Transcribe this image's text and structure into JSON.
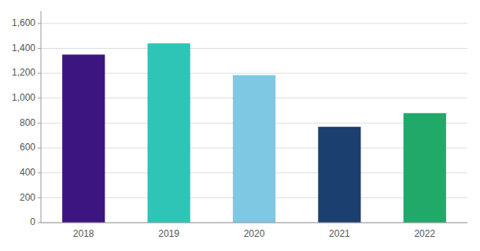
{
  "chart_data": {
    "type": "bar",
    "categories": [
      "2018",
      "2019",
      "2020",
      "2021",
      "2022"
    ],
    "values": [
      1350,
      1440,
      1185,
      770,
      880
    ],
    "colors": [
      "#3D1580",
      "#2EC4B6",
      "#7EC8E3",
      "#1B3F6E",
      "#21A96A"
    ],
    "ylim": [
      0,
      1700
    ],
    "yticks": [
      0,
      200,
      400,
      600,
      800,
      {
        "value": 1000,
        "label": "1,000"
      },
      {
        "value": 1200,
        "label": "1,200"
      },
      {
        "value": 1400,
        "label": "1,400"
      },
      {
        "value": 1600,
        "label": "1,600"
      }
    ],
    "grid": true
  }
}
